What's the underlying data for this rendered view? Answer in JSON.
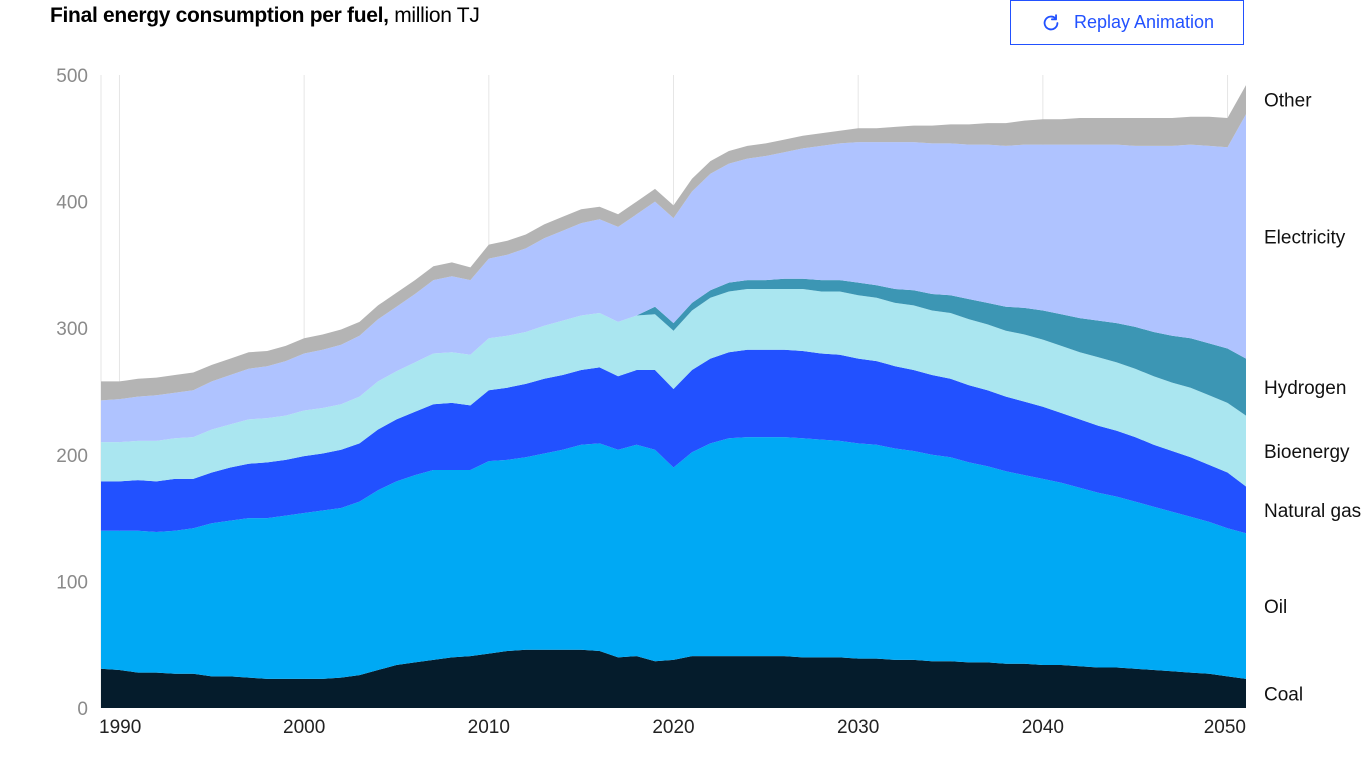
{
  "title": {
    "bold": "Final energy consumption per fuel,",
    "unit": "million TJ"
  },
  "button": {
    "label": "Replay Animation",
    "icon": "refresh-icon"
  },
  "chart_data": {
    "type": "area",
    "stacked": true,
    "title": "Final energy consumption per fuel, million TJ",
    "xlabel": "",
    "ylabel": "",
    "xlim": [
      1989,
      2051
    ],
    "ylim": [
      0,
      500
    ],
    "grid": true,
    "yticks": [
      0,
      100,
      200,
      300,
      400,
      500
    ],
    "xticks": [
      1990,
      2000,
      2010,
      2020,
      2030,
      2040,
      2050
    ],
    "x": [
      1989,
      1990,
      1991,
      1992,
      1993,
      1994,
      1995,
      1996,
      1997,
      1998,
      1999,
      2000,
      2001,
      2002,
      2003,
      2004,
      2005,
      2006,
      2007,
      2008,
      2009,
      2010,
      2011,
      2012,
      2013,
      2014,
      2015,
      2016,
      2017,
      2018,
      2019,
      2020,
      2021,
      2022,
      2023,
      2024,
      2025,
      2026,
      2027,
      2028,
      2029,
      2030,
      2031,
      2032,
      2033,
      2034,
      2035,
      2036,
      2037,
      2038,
      2039,
      2040,
      2041,
      2042,
      2043,
      2044,
      2045,
      2046,
      2047,
      2048,
      2049,
      2050,
      2051
    ],
    "series": [
      {
        "name": "Coal",
        "color": "#051c2c",
        "values": [
          31,
          30,
          28,
          28,
          27,
          27,
          25,
          25,
          24,
          23,
          23,
          23,
          23,
          24,
          26,
          30,
          34,
          36,
          38,
          40,
          41,
          43,
          45,
          46,
          46,
          46,
          46,
          45,
          40,
          41,
          37,
          38,
          41,
          41,
          41,
          41,
          41,
          41,
          40,
          40,
          40,
          39,
          39,
          38,
          38,
          37,
          37,
          36,
          36,
          35,
          35,
          34,
          34,
          33,
          32,
          32,
          31,
          30,
          29,
          28,
          27,
          25,
          23
        ]
      },
      {
        "name": "Oil",
        "color": "#00a9f4",
        "values": [
          109,
          110,
          112,
          111,
          113,
          115,
          121,
          123,
          126,
          127,
          129,
          131,
          133,
          134,
          137,
          142,
          145,
          148,
          150,
          148,
          147,
          152,
          151,
          152,
          155,
          158,
          162,
          164,
          164,
          167,
          167,
          152,
          161,
          168,
          172,
          173,
          173,
          173,
          173,
          172,
          171,
          170,
          169,
          167,
          165,
          163,
          161,
          158,
          155,
          152,
          149,
          147,
          144,
          141,
          138,
          135,
          132,
          129,
          126,
          123,
          120,
          117,
          115
        ]
      },
      {
        "name": "Natural gas",
        "color": "#2251ff",
        "values": [
          39,
          39,
          40,
          40,
          41,
          39,
          40,
          42,
          43,
          44,
          44,
          45,
          45,
          46,
          46,
          48,
          49,
          50,
          52,
          53,
          51,
          56,
          57,
          58,
          59,
          59,
          59,
          60,
          58,
          59,
          63,
          62,
          65,
          67,
          68,
          69,
          69,
          69,
          69,
          68,
          68,
          67,
          66,
          65,
          64,
          63,
          62,
          61,
          60,
          59,
          58,
          57,
          55,
          54,
          53,
          52,
          51,
          49,
          48,
          47,
          45,
          44,
          37
        ]
      },
      {
        "name": "Bioenergy",
        "color": "#aae6f0",
        "values": [
          31,
          31,
          31,
          32,
          32,
          33,
          34,
          34,
          35,
          35,
          35,
          36,
          36,
          36,
          37,
          38,
          38,
          39,
          40,
          40,
          40,
          41,
          41,
          41,
          42,
          43,
          43,
          43,
          43,
          43,
          44,
          46,
          47,
          48,
          48,
          48,
          48,
          48,
          49,
          49,
          50,
          50,
          50,
          50,
          51,
          51,
          52,
          52,
          52,
          52,
          53,
          53,
          53,
          53,
          54,
          54,
          54,
          54,
          54,
          55,
          55,
          55,
          56
        ]
      },
      {
        "name": "Hydrogen",
        "color": "#3c96b4",
        "values": [
          0,
          0,
          0,
          0,
          0,
          0,
          0,
          0,
          0,
          0,
          0,
          0,
          0,
          0,
          0,
          0,
          0,
          0,
          0,
          0,
          0,
          0,
          0,
          0,
          0,
          0,
          0,
          0,
          0,
          0,
          6,
          6,
          6,
          6,
          7,
          7,
          7,
          8,
          8,
          9,
          9,
          10,
          10,
          11,
          12,
          13,
          14,
          16,
          17,
          19,
          21,
          23,
          25,
          27,
          29,
          31,
          33,
          35,
          37,
          39,
          41,
          43,
          45
        ]
      },
      {
        "name": "Electricity",
        "color": "#afc3ff",
        "values": [
          33,
          34,
          35,
          36,
          36,
          37,
          38,
          39,
          40,
          41,
          43,
          45,
          46,
          47,
          48,
          49,
          51,
          54,
          58,
          60,
          59,
          63,
          64,
          66,
          69,
          71,
          73,
          74,
          75,
          80,
          83,
          83,
          88,
          92,
          94,
          96,
          98,
          100,
          103,
          106,
          108,
          111,
          113,
          116,
          117,
          119,
          120,
          122,
          125,
          127,
          129,
          131,
          134,
          137,
          139,
          141,
          143,
          147,
          150,
          153,
          156,
          159,
          193
        ]
      },
      {
        "name": "Other",
        "color": "#b4b4b4",
        "values": [
          15,
          14,
          14,
          14,
          14,
          14,
          13,
          13,
          13,
          12,
          12,
          12,
          12,
          12,
          11,
          11,
          11,
          11,
          11,
          11,
          10,
          11,
          11,
          11,
          11,
          11,
          11,
          10,
          10,
          10,
          10,
          10,
          10,
          10,
          10,
          10,
          10,
          10,
          10,
          10,
          10,
          11,
          11,
          12,
          13,
          14,
          15,
          16,
          17,
          18,
          19,
          20,
          20,
          21,
          21,
          21,
          22,
          22,
          22,
          22,
          23,
          23,
          23
        ]
      }
    ]
  }
}
